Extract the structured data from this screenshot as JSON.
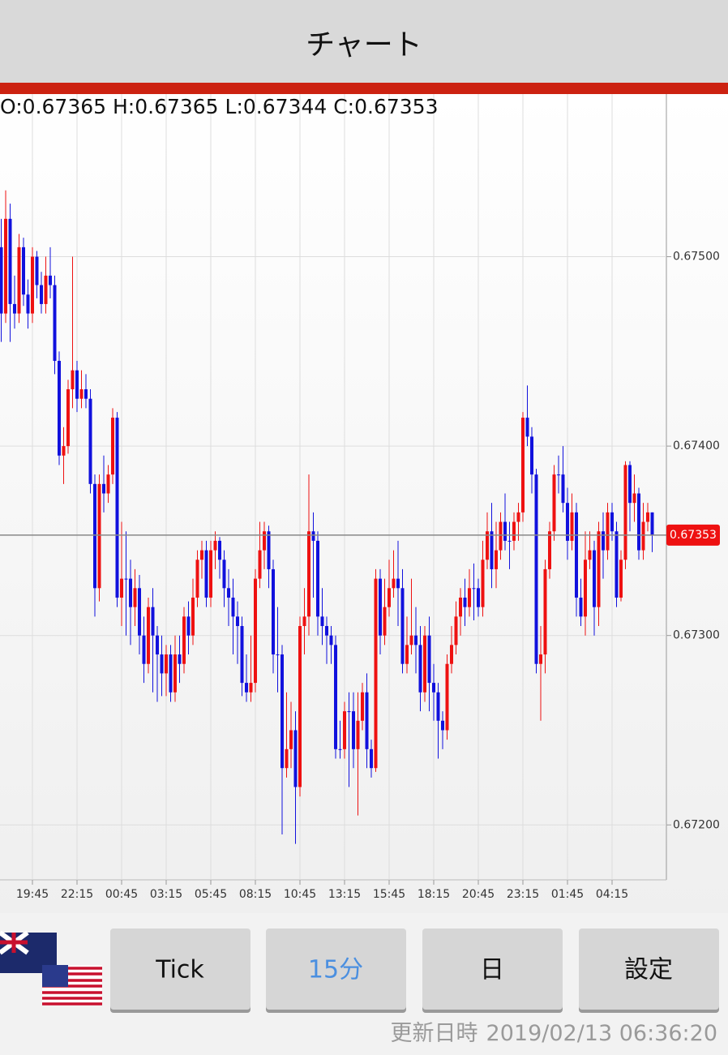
{
  "header": {
    "title": "チャート"
  },
  "info": "O:0.67365 H:0.67365 L:0.67344 C:0.67353",
  "buttons": [
    "Tick",
    "15分",
    "日",
    "設定"
  ],
  "footer": {
    "label": "更新日時",
    "timestamp": "2019/02/13 06:36:20"
  },
  "chart_data": {
    "type": "candlestick",
    "up_color": "#ee1111",
    "down_color": "#1111dd",
    "ylim": [
      0.67171,
      0.67585
    ],
    "yticks": [
      {
        "value": 0.672,
        "label": "0.67200"
      },
      {
        "value": 0.673,
        "label": "0.67300"
      },
      {
        "value": 0.674,
        "label": "0.67400"
      },
      {
        "value": 0.675,
        "label": "0.67500"
      }
    ],
    "grid": true,
    "last_price": 0.67353,
    "categories": [
      null,
      null,
      null,
      null,
      null,
      null,
      null,
      "19:45",
      null,
      null,
      null,
      null,
      null,
      null,
      null,
      null,
      null,
      "22:15",
      null,
      null,
      null,
      null,
      null,
      null,
      null,
      null,
      null,
      "00:45",
      null,
      null,
      null,
      null,
      null,
      null,
      null,
      null,
      null,
      "03:15",
      null,
      null,
      null,
      null,
      null,
      null,
      null,
      null,
      null,
      "05:45",
      null,
      null,
      null,
      null,
      null,
      null,
      null,
      null,
      null,
      "08:15",
      null,
      null,
      null,
      null,
      null,
      null,
      null,
      null,
      null,
      "10:45",
      null,
      null,
      null,
      null,
      null,
      null,
      null,
      null,
      null,
      "13:15",
      null,
      null,
      null,
      null,
      null,
      null,
      null,
      null,
      null,
      "15:45",
      null,
      null,
      null,
      null,
      null,
      null,
      null,
      null,
      null,
      "18:15",
      null,
      null,
      null,
      null,
      null,
      null,
      null,
      null,
      null,
      "20:45",
      null,
      null,
      null,
      null,
      null,
      null,
      null,
      null,
      null,
      "23:15",
      null,
      null,
      null,
      null,
      null,
      null,
      null,
      null,
      null,
      "01:45",
      null,
      null,
      null,
      null,
      null,
      null,
      null,
      null,
      null,
      "04:15",
      null,
      null,
      null,
      null,
      null,
      null,
      null,
      null,
      null
    ],
    "ohlc": [
      [
        0.67505,
        0.6752,
        0.67455,
        0.6747
      ],
      [
        0.6747,
        0.67535,
        0.67465,
        0.6752
      ],
      [
        0.6752,
        0.67528,
        0.67455,
        0.67475
      ],
      [
        0.67475,
        0.6749,
        0.67462,
        0.6747
      ],
      [
        0.6747,
        0.67512,
        0.67465,
        0.67505
      ],
      [
        0.67505,
        0.6751,
        0.67474,
        0.6748
      ],
      [
        0.6748,
        0.67488,
        0.67462,
        0.6747
      ],
      [
        0.6747,
        0.67505,
        0.67465,
        0.675
      ],
      [
        0.675,
        0.67503,
        0.67478,
        0.67485
      ],
      [
        0.67485,
        0.67492,
        0.6747,
        0.67475
      ],
      [
        0.67475,
        0.675,
        0.6747,
        0.6749
      ],
      [
        0.6749,
        0.67505,
        0.67478,
        0.67485
      ],
      [
        0.67485,
        0.6749,
        0.67438,
        0.67445
      ],
      [
        0.67445,
        0.6745,
        0.6739,
        0.67395
      ],
      [
        0.67395,
        0.6741,
        0.6738,
        0.674
      ],
      [
        0.674,
        0.67435,
        0.67396,
        0.6743
      ],
      [
        0.6743,
        0.675,
        0.6742,
        0.6744
      ],
      [
        0.6744,
        0.67445,
        0.67418,
        0.67425
      ],
      [
        0.67425,
        0.6744,
        0.6742,
        0.6743
      ],
      [
        0.6743,
        0.67438,
        0.6742,
        0.67425
      ],
      [
        0.67425,
        0.6743,
        0.67375,
        0.6738
      ],
      [
        0.6738,
        0.67385,
        0.6731,
        0.67325
      ],
      [
        0.67325,
        0.67385,
        0.67318,
        0.6738
      ],
      [
        0.6738,
        0.67395,
        0.67365,
        0.67375
      ],
      [
        0.67375,
        0.6739,
        0.6737,
        0.67385
      ],
      [
        0.67385,
        0.6742,
        0.6738,
        0.67415
      ],
      [
        0.67415,
        0.67418,
        0.67315,
        0.6732
      ],
      [
        0.6732,
        0.6736,
        0.67305,
        0.6733
      ],
      [
        0.6733,
        0.67355,
        0.673,
        0.6733
      ],
      [
        0.6733,
        0.6734,
        0.67295,
        0.67315
      ],
      [
        0.67315,
        0.67335,
        0.67305,
        0.67325
      ],
      [
        0.67325,
        0.67332,
        0.6729,
        0.673
      ],
      [
        0.673,
        0.6731,
        0.67275,
        0.67285
      ],
      [
        0.67285,
        0.6732,
        0.6728,
        0.67315
      ],
      [
        0.67315,
        0.67325,
        0.6727,
        0.673
      ],
      [
        0.673,
        0.67305,
        0.67265,
        0.6729
      ],
      [
        0.6729,
        0.673,
        0.67268,
        0.6728
      ],
      [
        0.6728,
        0.67295,
        0.67268,
        0.6729
      ],
      [
        0.6729,
        0.67295,
        0.67265,
        0.6727
      ],
      [
        0.6727,
        0.673,
        0.67265,
        0.6729
      ],
      [
        0.6729,
        0.673,
        0.67275,
        0.67285
      ],
      [
        0.67285,
        0.67315,
        0.6728,
        0.6731
      ],
      [
        0.6731,
        0.67318,
        0.6729,
        0.673
      ],
      [
        0.673,
        0.6733,
        0.67295,
        0.6732
      ],
      [
        0.6732,
        0.67345,
        0.67315,
        0.6734
      ],
      [
        0.6734,
        0.6735,
        0.6733,
        0.67345
      ],
      [
        0.67345,
        0.6735,
        0.67315,
        0.6732
      ],
      [
        0.6732,
        0.6735,
        0.67315,
        0.67345
      ],
      [
        0.67345,
        0.67355,
        0.67335,
        0.6735
      ],
      [
        0.6735,
        0.67352,
        0.6733,
        0.6734
      ],
      [
        0.6734,
        0.67345,
        0.67315,
        0.67325
      ],
      [
        0.67325,
        0.67335,
        0.67305,
        0.6732
      ],
      [
        0.6732,
        0.6733,
        0.6729,
        0.6731
      ],
      [
        0.6731,
        0.67318,
        0.67285,
        0.67305
      ],
      [
        0.67305,
        0.6731,
        0.67268,
        0.67275
      ],
      [
        0.67275,
        0.6729,
        0.67265,
        0.6727
      ],
      [
        0.6727,
        0.673,
        0.67265,
        0.67275
      ],
      [
        0.67275,
        0.67335,
        0.6727,
        0.6733
      ],
      [
        0.6733,
        0.6736,
        0.67325,
        0.67345
      ],
      [
        0.67345,
        0.6736,
        0.67335,
        0.67355
      ],
      [
        0.67355,
        0.67358,
        0.67325,
        0.67335
      ],
      [
        0.67335,
        0.6734,
        0.6728,
        0.6729
      ],
      [
        0.6729,
        0.67315,
        0.6727,
        0.6729
      ],
      [
        0.6729,
        0.67295,
        0.67195,
        0.6723
      ],
      [
        0.6723,
        0.6727,
        0.67225,
        0.6724
      ],
      [
        0.6724,
        0.67265,
        0.6723,
        0.6725
      ],
      [
        0.6725,
        0.6726,
        0.6719,
        0.6722
      ],
      [
        0.6722,
        0.6731,
        0.67215,
        0.67305
      ],
      [
        0.67305,
        0.67325,
        0.6729,
        0.6731
      ],
      [
        0.6731,
        0.67385,
        0.673,
        0.67355
      ],
      [
        0.67355,
        0.67365,
        0.6732,
        0.6735
      ],
      [
        0.6735,
        0.67355,
        0.673,
        0.6731
      ],
      [
        0.6731,
        0.67325,
        0.67295,
        0.67305
      ],
      [
        0.67305,
        0.6731,
        0.67285,
        0.673
      ],
      [
        0.673,
        0.67305,
        0.67285,
        0.67295
      ],
      [
        0.67295,
        0.673,
        0.67235,
        0.6724
      ],
      [
        0.6724,
        0.67255,
        0.67235,
        0.6724
      ],
      [
        0.6724,
        0.67265,
        0.67235,
        0.6726
      ],
      [
        0.6726,
        0.6727,
        0.6722,
        0.6726
      ],
      [
        0.6726,
        0.6727,
        0.6723,
        0.6724
      ],
      [
        0.6724,
        0.6727,
        0.67205,
        0.67255
      ],
      [
        0.67255,
        0.67275,
        0.6725,
        0.6727
      ],
      [
        0.6727,
        0.6728,
        0.6723,
        0.6724
      ],
      [
        0.6724,
        0.67245,
        0.67225,
        0.6723
      ],
      [
        0.6723,
        0.67335,
        0.67228,
        0.6733
      ],
      [
        0.6733,
        0.67335,
        0.6729,
        0.673
      ],
      [
        0.673,
        0.6733,
        0.67295,
        0.67315
      ],
      [
        0.67315,
        0.6734,
        0.6731,
        0.67325
      ],
      [
        0.67325,
        0.67345,
        0.6732,
        0.6733
      ],
      [
        0.6733,
        0.6735,
        0.67305,
        0.67325
      ],
      [
        0.67325,
        0.67335,
        0.6728,
        0.67285
      ],
      [
        0.67285,
        0.6731,
        0.6728,
        0.67295
      ],
      [
        0.67295,
        0.6733,
        0.6729,
        0.673
      ],
      [
        0.673,
        0.67315,
        0.6728,
        0.67295
      ],
      [
        0.67295,
        0.67305,
        0.6726,
        0.6727
      ],
      [
        0.6727,
        0.67305,
        0.67265,
        0.673
      ],
      [
        0.673,
        0.6731,
        0.6726,
        0.67275
      ],
      [
        0.67275,
        0.67285,
        0.67255,
        0.6727
      ],
      [
        0.6727,
        0.67275,
        0.67235,
        0.67255
      ],
      [
        0.67255,
        0.6726,
        0.6724,
        0.6725
      ],
      [
        0.6725,
        0.6729,
        0.67245,
        0.67285
      ],
      [
        0.67285,
        0.67305,
        0.6728,
        0.67295
      ],
      [
        0.67295,
        0.67318,
        0.6729,
        0.6731
      ],
      [
        0.6731,
        0.67325,
        0.673,
        0.6732
      ],
      [
        0.6732,
        0.6733,
        0.67305,
        0.67315
      ],
      [
        0.67315,
        0.67335,
        0.6731,
        0.67325
      ],
      [
        0.67325,
        0.67338,
        0.67308,
        0.67325
      ],
      [
        0.67325,
        0.6733,
        0.6731,
        0.67315
      ],
      [
        0.67315,
        0.6735,
        0.6731,
        0.6734
      ],
      [
        0.6734,
        0.67365,
        0.67335,
        0.67355
      ],
      [
        0.67355,
        0.6737,
        0.67325,
        0.67335
      ],
      [
        0.67335,
        0.6736,
        0.67325,
        0.67345
      ],
      [
        0.67345,
        0.67365,
        0.6734,
        0.6736
      ],
      [
        0.6736,
        0.67375,
        0.67345,
        0.6735
      ],
      [
        0.6735,
        0.6736,
        0.67335,
        0.6735
      ],
      [
        0.6735,
        0.67365,
        0.67345,
        0.6736
      ],
      [
        0.6736,
        0.6737,
        0.6735,
        0.67365
      ],
      [
        0.67365,
        0.67418,
        0.6736,
        0.67415
      ],
      [
        0.67415,
        0.67432,
        0.674,
        0.67405
      ],
      [
        0.67405,
        0.6741,
        0.67375,
        0.67385
      ],
      [
        0.67385,
        0.67388,
        0.6728,
        0.67285
      ],
      [
        0.67285,
        0.67305,
        0.67255,
        0.6729
      ],
      [
        0.6729,
        0.6734,
        0.6728,
        0.67335
      ],
      [
        0.67335,
        0.6736,
        0.6733,
        0.67355
      ],
      [
        0.67355,
        0.6739,
        0.6735,
        0.67385
      ],
      [
        0.67385,
        0.67395,
        0.67375,
        0.67385
      ],
      [
        0.67385,
        0.674,
        0.67365,
        0.6737
      ],
      [
        0.6737,
        0.67378,
        0.6734,
        0.6735
      ],
      [
        0.6735,
        0.67375,
        0.67345,
        0.67365
      ],
      [
        0.67365,
        0.6737,
        0.6731,
        0.6732
      ],
      [
        0.6732,
        0.6733,
        0.67305,
        0.6731
      ],
      [
        0.6731,
        0.67355,
        0.673,
        0.6734
      ],
      [
        0.6734,
        0.67355,
        0.67335,
        0.67345
      ],
      [
        0.67345,
        0.6735,
        0.673,
        0.67315
      ],
      [
        0.67315,
        0.6736,
        0.67305,
        0.67355
      ],
      [
        0.67355,
        0.67365,
        0.6733,
        0.67345
      ],
      [
        0.67345,
        0.6737,
        0.6734,
        0.67365
      ],
      [
        0.67365,
        0.6737,
        0.6735,
        0.67355
      ],
      [
        0.67355,
        0.6736,
        0.67315,
        0.6732
      ],
      [
        0.6732,
        0.67345,
        0.67318,
        0.6734
      ],
      [
        0.6734,
        0.67392,
        0.67335,
        0.6739
      ],
      [
        0.6739,
        0.67392,
        0.67355,
        0.6737
      ],
      [
        0.6737,
        0.67385,
        0.6736,
        0.67375
      ],
      [
        0.67375,
        0.67378,
        0.6734,
        0.67345
      ],
      [
        0.67345,
        0.6737,
        0.6734,
        0.6736
      ],
      [
        0.6736,
        0.6737,
        0.67355,
        0.67365
      ],
      [
        0.67365,
        0.67365,
        0.67344,
        0.67353
      ]
    ]
  }
}
